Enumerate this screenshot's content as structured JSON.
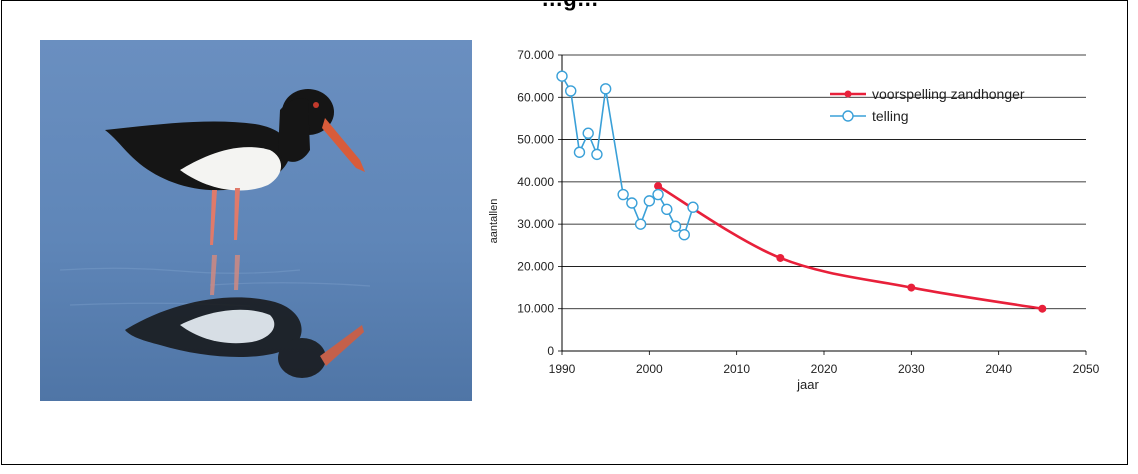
{
  "page": {
    "title": "…g…"
  },
  "chart_data": {
    "type": "line",
    "xlabel": "jaar",
    "ylabel": "aantallen",
    "xlim": [
      1990,
      2050
    ],
    "ylim": [
      0,
      70000
    ],
    "x_ticks": [
      1990,
      2000,
      2010,
      2020,
      2030,
      2040,
      2050
    ],
    "y_ticks": [
      0,
      10000,
      20000,
      30000,
      40000,
      50000,
      60000,
      70000
    ],
    "y_tick_labels": [
      "0",
      "10.000",
      "20.000",
      "30.000",
      "40.000",
      "50.000",
      "60.000",
      "70.000"
    ],
    "grid": "horizontal",
    "legend_position": "top-right",
    "series": [
      {
        "name": "voorspelling zandhonger",
        "color": "#e8203a",
        "marker": "filled-circle",
        "x": [
          2001,
          2015,
          2030,
          2045
        ],
        "y": [
          39000,
          22000,
          15000,
          10000
        ]
      },
      {
        "name": "telling",
        "color": "#3aa0d8",
        "marker": "open-circle",
        "x": [
          1990,
          1991,
          1992,
          1993,
          1994,
          1995,
          1997,
          1998,
          1999,
          2000,
          2001,
          2002,
          2003,
          2004,
          2005
        ],
        "y": [
          65000,
          61500,
          47000,
          51500,
          46500,
          62000,
          37000,
          35000,
          30000,
          35500,
          37000,
          33500,
          29500,
          27500,
          34000
        ]
      }
    ]
  },
  "photo": {
    "subject_icon": "oystercatcher-bird-icon",
    "colors": {
      "water": "#5f86b8",
      "body_black": "#151515",
      "belly_white": "#f4f4f2",
      "beak": "#d85c3a",
      "legs": "#e07a6a"
    }
  }
}
